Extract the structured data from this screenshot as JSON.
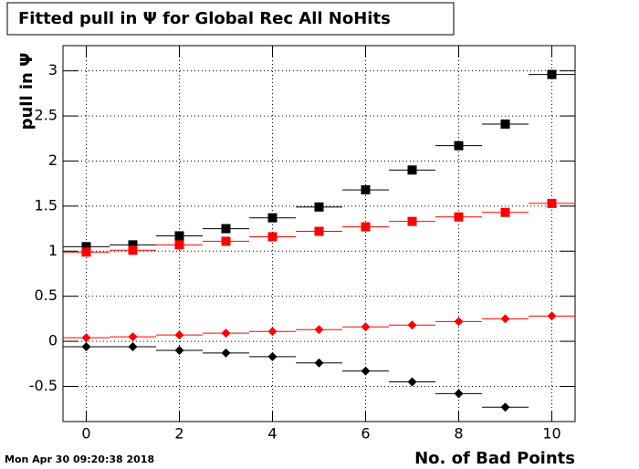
{
  "chart_data": {
    "type": "scatter",
    "title": "Fitted pull in  Ψ  for Global Rec All NoHits",
    "y_label": "pull in  Ψ",
    "x_label": "No. of Bad Points",
    "timestamp": "Mon Apr 30 09:20:38 2018",
    "xlim": [
      -0.5,
      10.5
    ],
    "xticks": [
      0,
      2,
      4,
      6,
      8,
      10
    ],
    "ylim": [
      -0.89,
      3.28
    ],
    "yticks": [
      -0.5,
      0,
      0.5,
      1,
      1.5,
      2,
      2.5,
      3
    ],
    "grid": true,
    "xerr": 0.5,
    "series": [
      {
        "color": "#000000",
        "marker": "square",
        "x": [
          0,
          1,
          2,
          3,
          4,
          5,
          6,
          7,
          8,
          9,
          10
        ],
        "values": [
          1.05,
          1.07,
          1.17,
          1.25,
          1.37,
          1.49,
          1.68,
          1.9,
          2.17,
          2.41,
          2.96
        ]
      },
      {
        "color": "#ff0000",
        "marker": "square",
        "x": [
          0,
          1,
          2,
          3,
          4,
          5,
          6,
          7,
          8,
          9,
          10
        ],
        "values": [
          0.99,
          1.01,
          1.07,
          1.11,
          1.16,
          1.22,
          1.27,
          1.33,
          1.38,
          1.43,
          1.53
        ]
      },
      {
        "color": "#ff0000",
        "marker": "diamond",
        "x": [
          0,
          1,
          2,
          3,
          4,
          5,
          6,
          7,
          8,
          9,
          10
        ],
        "values": [
          0.04,
          0.05,
          0.07,
          0.09,
          0.11,
          0.13,
          0.16,
          0.18,
          0.22,
          0.25,
          0.28
        ]
      },
      {
        "color": "#000000",
        "marker": "diamond",
        "x": [
          0,
          1,
          2,
          3,
          4,
          5,
          6,
          7,
          8,
          9
        ],
        "values": [
          -0.06,
          -0.06,
          -0.1,
          -0.13,
          -0.17,
          -0.24,
          -0.33,
          -0.45,
          -0.58,
          -0.73
        ]
      }
    ]
  }
}
